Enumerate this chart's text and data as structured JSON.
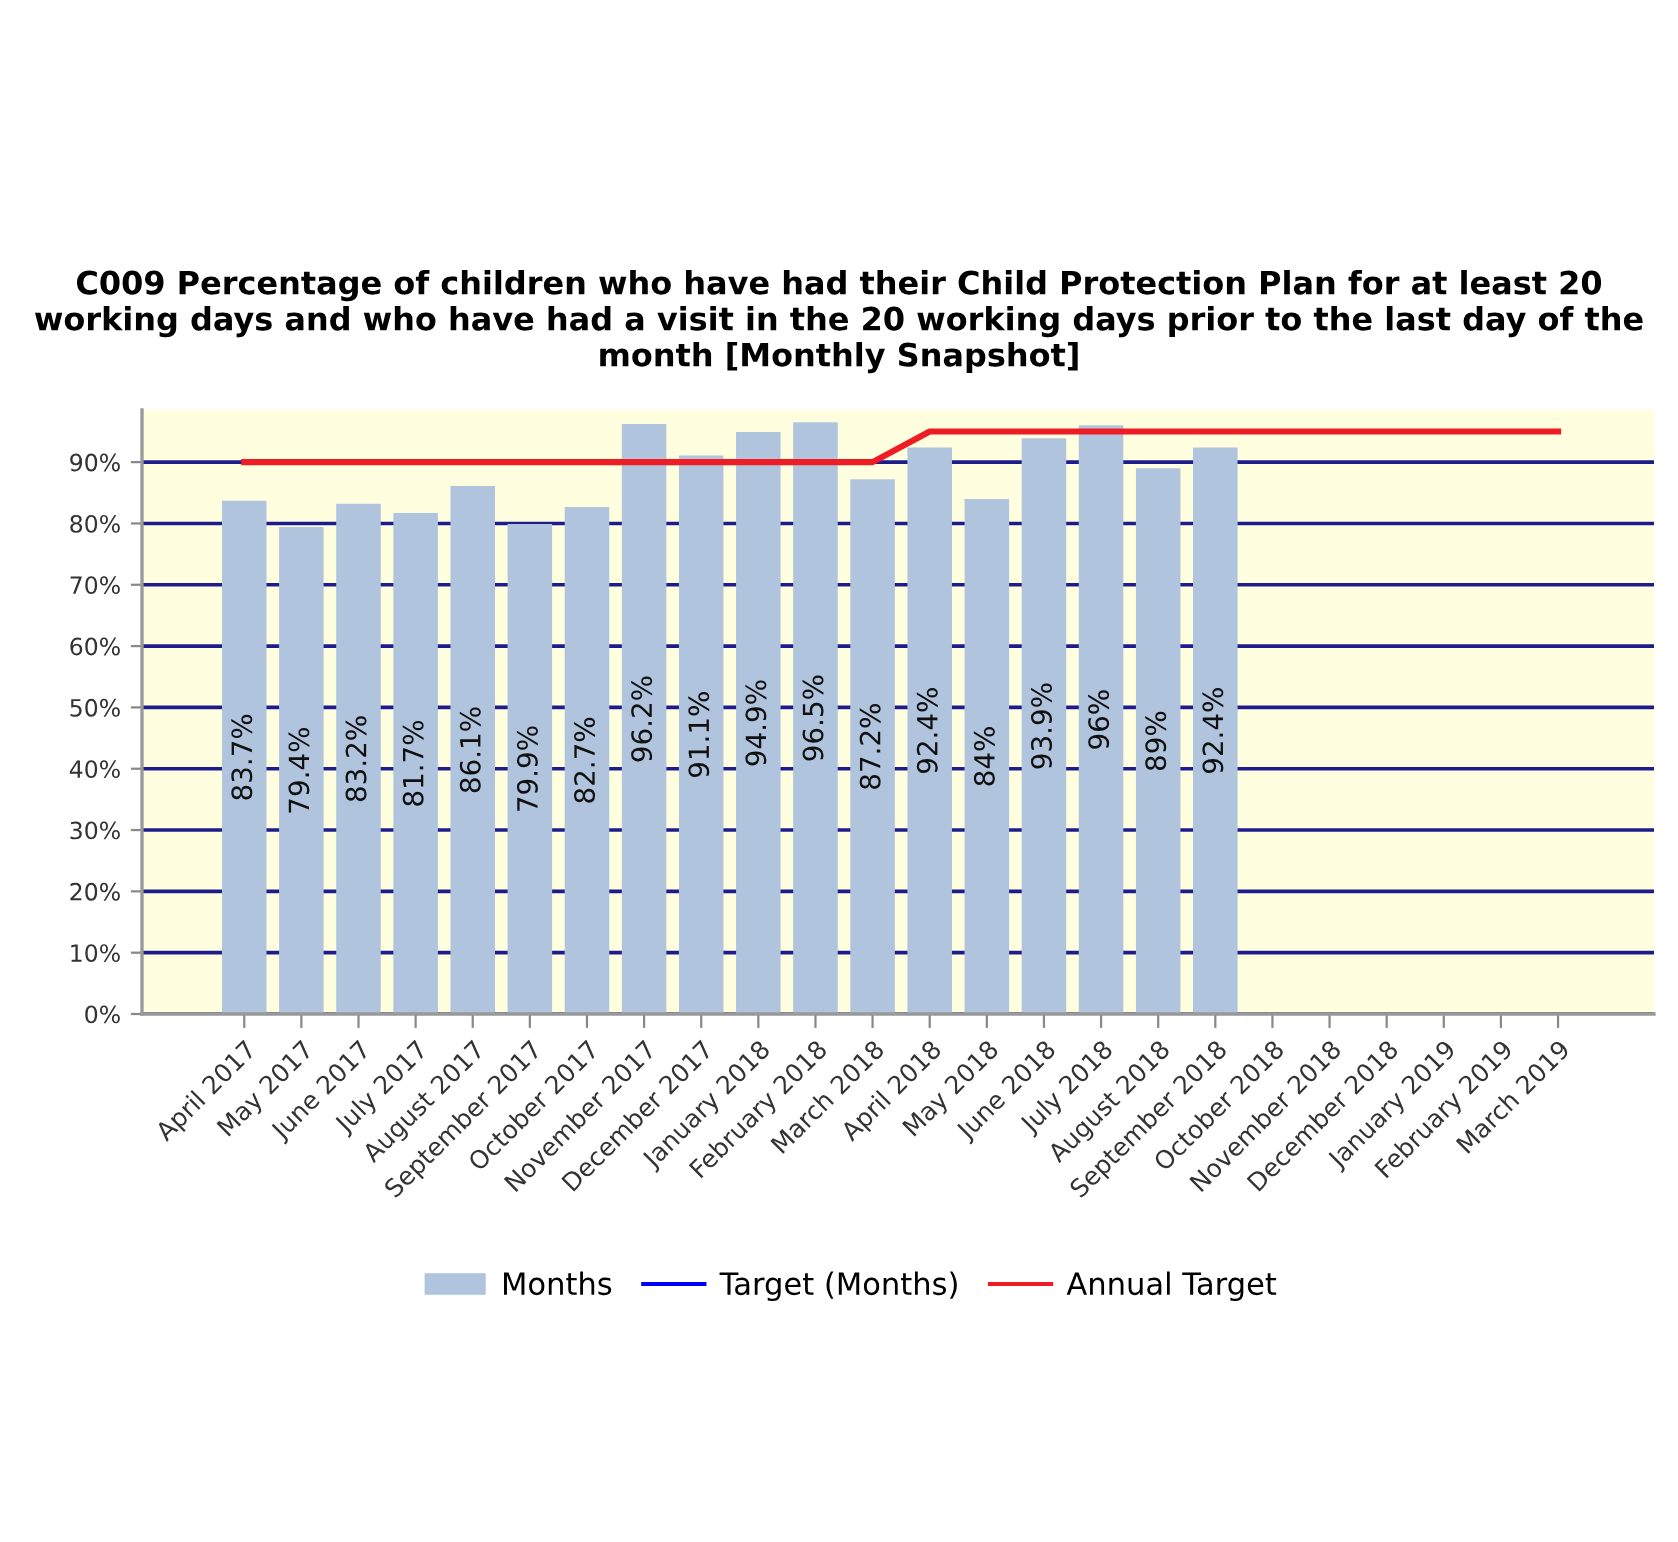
{
  "chart_data": {
    "type": "bar",
    "title": "C009 Percentage of children who have had their Child Protection Plan for at least 20 working days and who have had a visit in the 20 working days prior to the last day of the month [Monthly Snapshot]",
    "categories": [
      "April 2017",
      "May 2017",
      "June 2017",
      "July 2017",
      "August 2017",
      "September 2017",
      "October 2017",
      "November 2017",
      "December 2017",
      "January 2018",
      "February 2018",
      "March 2018",
      "April 2018",
      "May 2018",
      "June 2018",
      "July 2018",
      "August 2018",
      "September 2018",
      "October 2018",
      "November 2018",
      "December 2018",
      "January 2019",
      "February 2019",
      "March 2019"
    ],
    "series": [
      {
        "name": "Months",
        "color": "#b0c4de",
        "values": [
          83.7,
          79.4,
          83.2,
          81.7,
          86.1,
          79.9,
          82.7,
          96.2,
          91.1,
          94.9,
          96.5,
          87.2,
          92.4,
          84,
          93.9,
          96,
          89,
          92.4,
          null,
          null,
          null,
          null,
          null,
          null
        ],
        "value_labels": [
          "83.7%",
          "79.4%",
          "83.2%",
          "81.7%",
          "86.1%",
          "79.9%",
          "82.7%",
          "96.2%",
          "91.1%",
          "94.9%",
          "96.5%",
          "87.2%",
          "92.4%",
          "84%",
          "93.9%",
          "96%",
          "89%",
          "92.4%",
          null,
          null,
          null,
          null,
          null,
          null
        ]
      },
      {
        "name": "Target (Months)",
        "type": "line",
        "color": "#0000ff",
        "values": [
          null,
          null,
          null,
          null,
          null,
          null,
          null,
          null,
          null,
          null,
          null,
          null,
          null,
          null,
          null,
          null,
          null,
          null,
          null,
          null,
          null,
          null,
          null,
          null
        ]
      },
      {
        "name": "Annual Target",
        "type": "line",
        "color": "#ee1c25",
        "values": [
          90,
          90,
          90,
          90,
          90,
          90,
          90,
          90,
          90,
          90,
          90,
          90,
          95,
          95,
          95,
          95,
          95,
          95,
          95,
          95,
          95,
          95,
          95,
          95
        ]
      }
    ],
    "ylim": [
      0,
      98.5
    ],
    "yticks": [
      {
        "value": 0,
        "label": "0%"
      },
      {
        "value": 10,
        "label": "10%"
      },
      {
        "value": 20,
        "label": "20%"
      },
      {
        "value": 30,
        "label": "30%"
      },
      {
        "value": 40,
        "label": "40%"
      },
      {
        "value": 50,
        "label": "50%"
      },
      {
        "value": 60,
        "label": "60%"
      },
      {
        "value": 70,
        "label": "70%"
      },
      {
        "value": 80,
        "label": "80%"
      },
      {
        "value": 90,
        "label": "90%"
      }
    ],
    "grid": "y",
    "legend": "bottom"
  }
}
